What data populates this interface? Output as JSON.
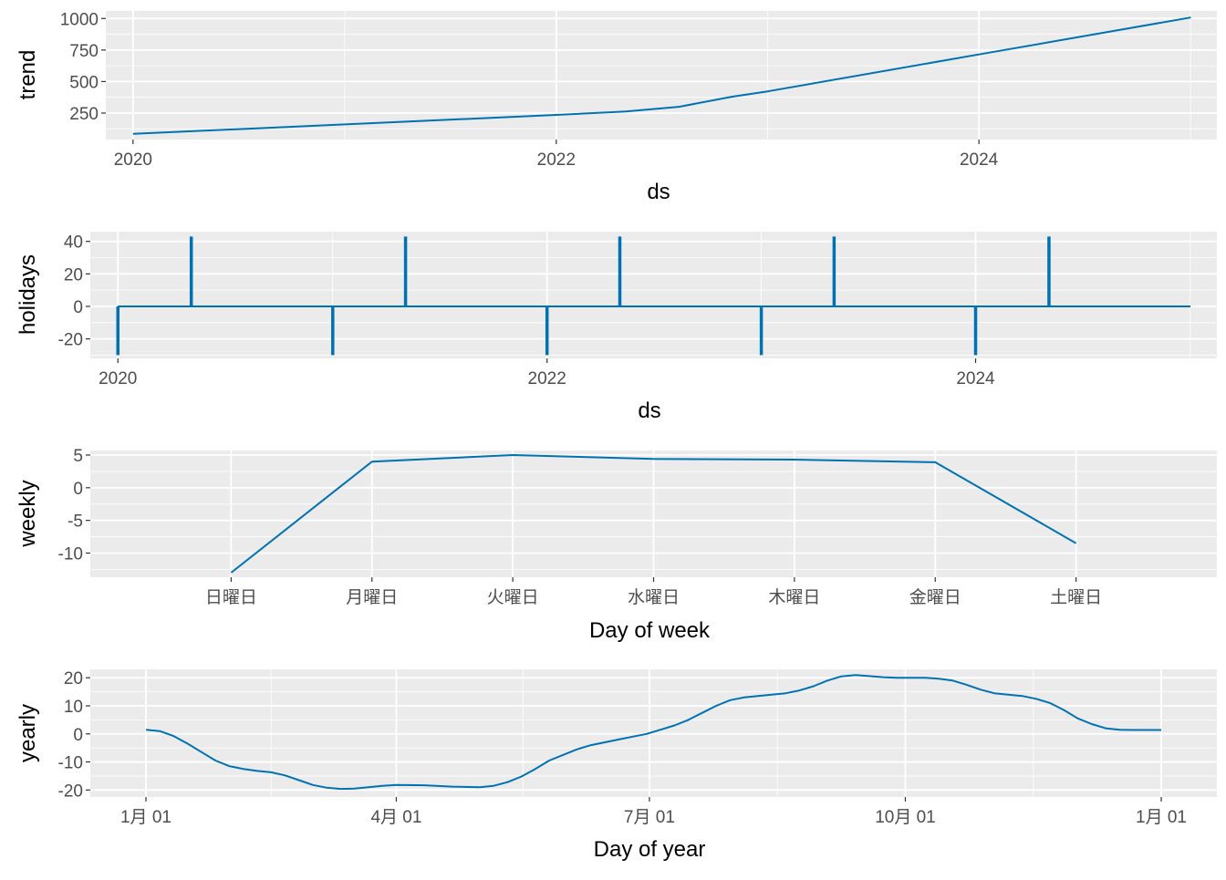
{
  "colors": {
    "line": "#0072B2",
    "panel": "#EBEBEB",
    "grid": "#FFFFFF",
    "text": "#4D4D4D",
    "title": "#000000"
  },
  "chart_data": [
    {
      "type": "line",
      "xlabel": "ds",
      "ylabel": "trend",
      "x_type": "date",
      "xlim": [
        "2019-11-15",
        "2025-02-15"
      ],
      "ylim": [
        40,
        1060
      ],
      "x_ticks": [
        {
          "at": "2020-01-01",
          "label": "2020"
        },
        {
          "at": "2022-01-01",
          "label": "2022"
        },
        {
          "at": "2024-01-01",
          "label": "2024"
        }
      ],
      "y_ticks": [
        250,
        500,
        750,
        1000
      ],
      "y_tick_labels": [
        "250",
        "500",
        "750",
        "1000"
      ],
      "grid": true,
      "series": [
        {
          "points": [
            [
              "2020-01-01",
              85
            ],
            [
              "2021-01-01",
              160
            ],
            [
              "2022-01-01",
              235
            ],
            [
              "2022-05-01",
              262
            ],
            [
              "2022-08-01",
              300
            ],
            [
              "2022-11-01",
              380
            ],
            [
              "2023-01-01",
              422
            ],
            [
              "2024-01-01",
              715
            ],
            [
              "2025-01-01",
              1008
            ]
          ]
        }
      ]
    },
    {
      "type": "line",
      "xlabel": "ds",
      "ylabel": "holidays",
      "x_type": "date",
      "xlim": [
        "2019-11-15",
        "2025-02-15"
      ],
      "ylim": [
        -32,
        46
      ],
      "x_ticks": [
        {
          "at": "2020-01-01",
          "label": "2020"
        },
        {
          "at": "2022-01-01",
          "label": "2022"
        },
        {
          "at": "2024-01-01",
          "label": "2024"
        }
      ],
      "y_ticks": [
        -20,
        0,
        20,
        40
      ],
      "y_tick_labels": [
        "-20",
        "0",
        "20",
        "40"
      ],
      "grid": true,
      "holiday_spikes": [
        {
          "date": "2020-01-01",
          "value": -30
        },
        {
          "date": "2020-05-05",
          "value": 43
        },
        {
          "date": "2021-01-01",
          "value": -30
        },
        {
          "date": "2021-05-05",
          "value": 43
        },
        {
          "date": "2022-01-01",
          "value": -30
        },
        {
          "date": "2022-05-05",
          "value": 43
        },
        {
          "date": "2023-01-01",
          "value": -30
        },
        {
          "date": "2023-05-05",
          "value": 43
        },
        {
          "date": "2024-01-01",
          "value": -30
        },
        {
          "date": "2024-05-05",
          "value": 43
        }
      ],
      "baseline_range": [
        "2020-01-01",
        "2025-01-01"
      ]
    },
    {
      "type": "line",
      "xlabel": "Day of week",
      "ylabel": "weekly",
      "categories": [
        "日曜日",
        "月曜日",
        "火曜日",
        "水曜日",
        "木曜日",
        "金曜日",
        "土曜日"
      ],
      "values": [
        -13,
        4,
        5,
        4.4,
        4.3,
        3.9,
        -8.5
      ],
      "ylim": [
        -13.7,
        5.7
      ],
      "y_ticks": [
        -10,
        -5,
        0,
        5
      ],
      "y_tick_labels": [
        "-10",
        "-5",
        "0",
        "5"
      ],
      "grid": true
    },
    {
      "type": "line",
      "xlabel": "Day of year",
      "ylabel": "yearly",
      "xlim": [
        -20,
        385
      ],
      "ylim": [
        -22.5,
        23
      ],
      "x_ticks": [
        {
          "at": 0,
          "label": "1月 01"
        },
        {
          "at": 90,
          "label": "4月 01"
        },
        {
          "at": 181,
          "label": "7月 01"
        },
        {
          "at": 273,
          "label": "10月 01"
        },
        {
          "at": 365,
          "label": "1月 01"
        }
      ],
      "y_ticks": [
        -20,
        -10,
        0,
        10,
        20
      ],
      "y_tick_labels": [
        "-20",
        "-10",
        "0",
        "10",
        "20"
      ],
      "grid": true,
      "series": [
        {
          "x": [
            0,
            5,
            10,
            15,
            20,
            25,
            30,
            35,
            40,
            45,
            50,
            55,
            60,
            65,
            70,
            75,
            80,
            85,
            90,
            100,
            110,
            120,
            125,
            130,
            135,
            140,
            145,
            150,
            155,
            160,
            165,
            170,
            175,
            180,
            185,
            190,
            195,
            200,
            205,
            210,
            215,
            220,
            225,
            230,
            235,
            240,
            245,
            250,
            255,
            260,
            265,
            270,
            275,
            280,
            285,
            290,
            295,
            300,
            305,
            310,
            315,
            320,
            325,
            330,
            335,
            340,
            345,
            350,
            355,
            360,
            365
          ],
          "values": [
            1.5,
            1,
            -0.8,
            -3.5,
            -6.5,
            -9.5,
            -11.5,
            -12.5,
            -13.2,
            -13.7,
            -14.8,
            -16.5,
            -18.2,
            -19.2,
            -19.6,
            -19.5,
            -19,
            -18.5,
            -18.2,
            -18.3,
            -18.8,
            -19,
            -18.5,
            -17.2,
            -15.2,
            -12.5,
            -9.5,
            -7.5,
            -5.5,
            -4,
            -3,
            -2,
            -1,
            0,
            1.5,
            3,
            5,
            7.5,
            10,
            12,
            13,
            13.5,
            14,
            14.5,
            15.5,
            17,
            19,
            20.5,
            21,
            20.6,
            20.2,
            20,
            20,
            20,
            19.7,
            19,
            17.5,
            15.8,
            14.5,
            14,
            13.5,
            12.5,
            11,
            8.5,
            5.5,
            3.5,
            2,
            1.5,
            1.4,
            1.4,
            1.4
          ]
        }
      ]
    }
  ]
}
